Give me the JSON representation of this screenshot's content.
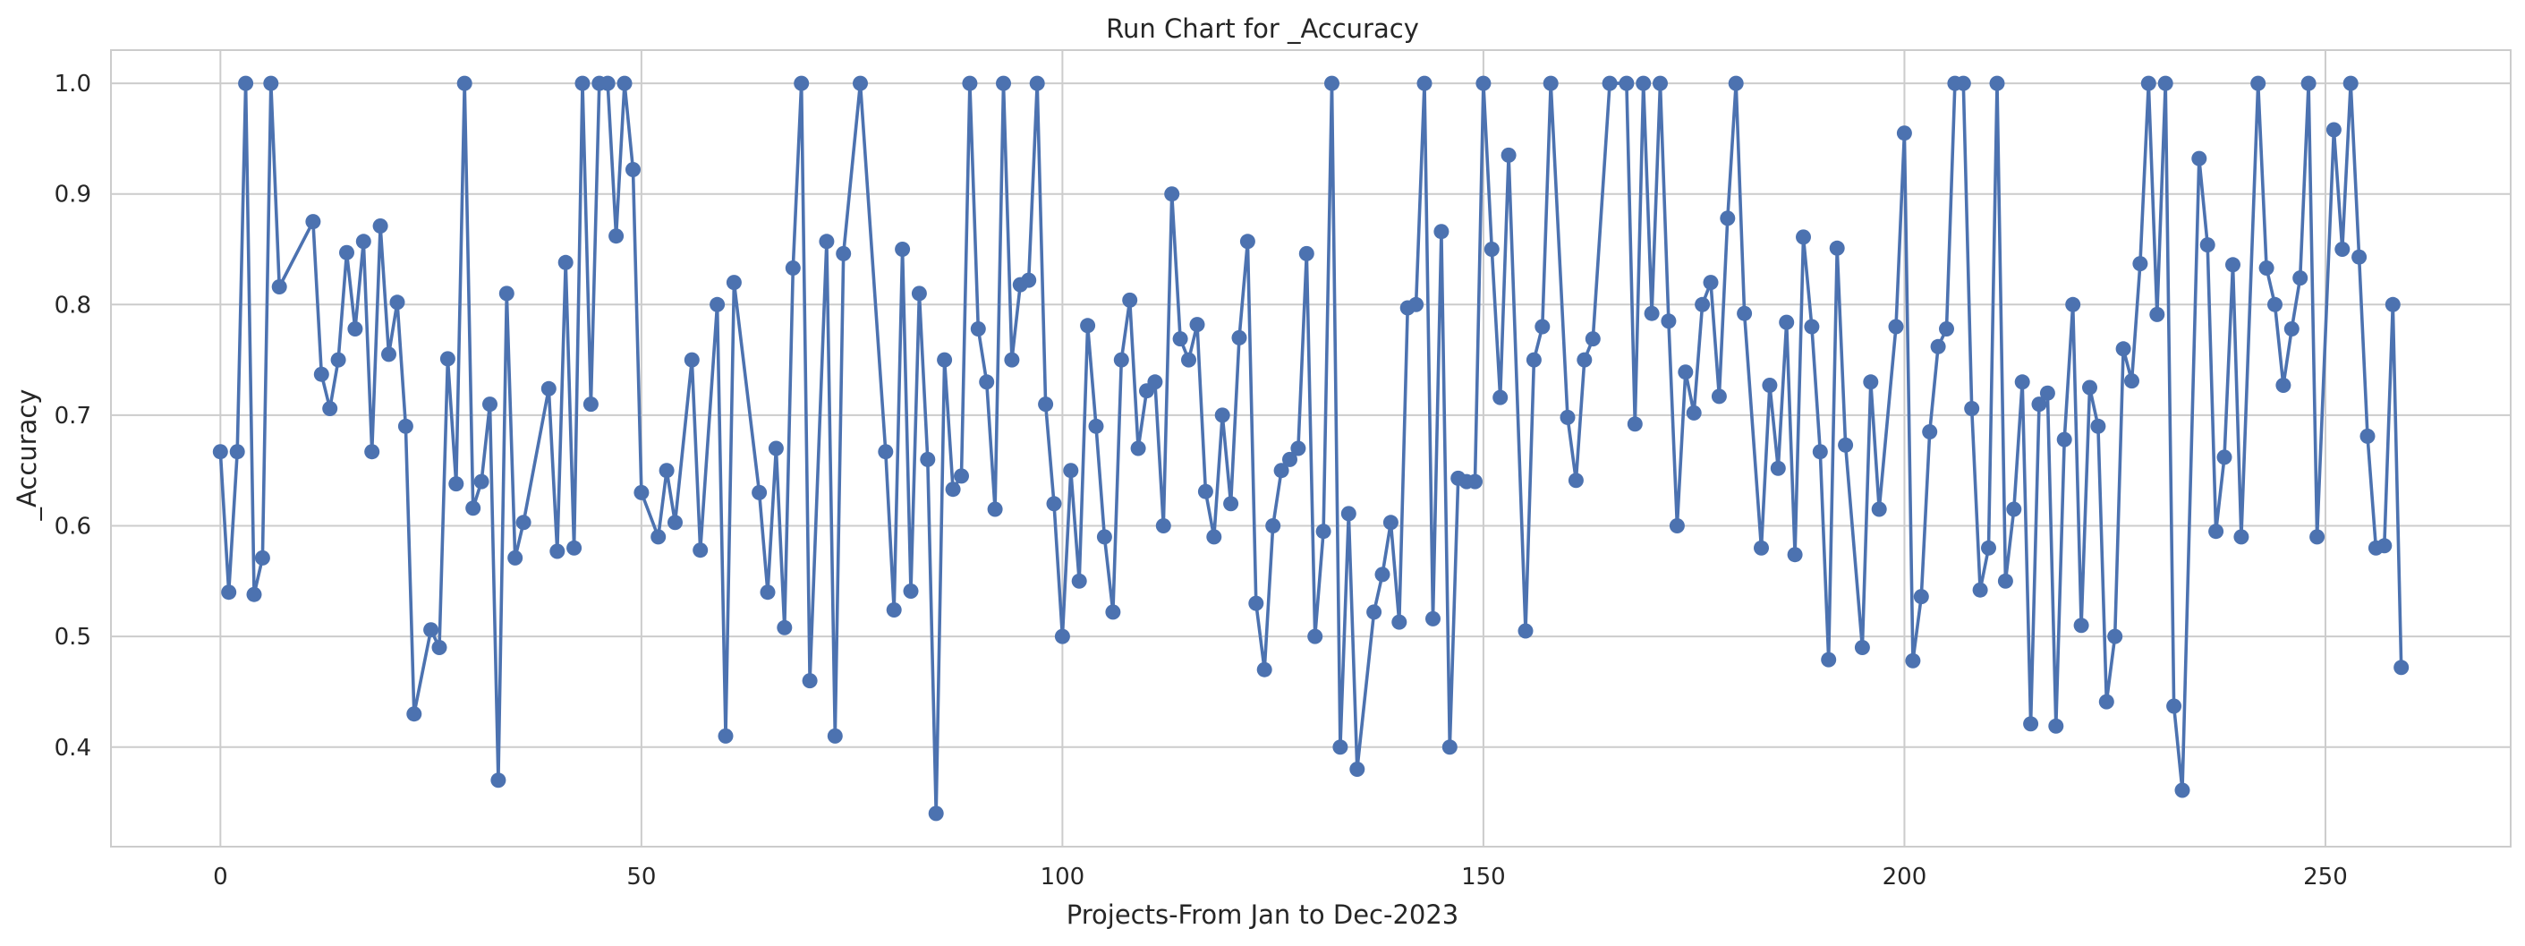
{
  "chart_data": {
    "type": "line",
    "title": "Run Chart for _Accuracy",
    "xlabel": "Projects-From Jan to Dec-2023",
    "ylabel": "_Accuracy",
    "xlim": [
      -13,
      272
    ],
    "ylim": [
      0.31,
      1.03
    ],
    "xticks": [
      0,
      50,
      100,
      150,
      200,
      250
    ],
    "yticks": [
      0.4,
      0.5,
      0.6,
      0.7,
      0.8,
      0.9,
      1.0
    ],
    "xtick_labels": [
      "0",
      "50",
      "100",
      "150",
      "200",
      "250"
    ],
    "ytick_labels": [
      "0.4",
      "0.5",
      "0.6",
      "0.7",
      "0.8",
      "0.9",
      "1.0"
    ],
    "grid": true,
    "legend": "none",
    "colors": {
      "line": "#4c72b0",
      "grid": "#cccccc",
      "spine": "#cccccc",
      "text": "#262626"
    },
    "marker": "circle",
    "series": [
      {
        "x": [
          0,
          1,
          2,
          3,
          4,
          5,
          6,
          7,
          11,
          12,
          13,
          14,
          15,
          16,
          17,
          18,
          19,
          20,
          21,
          22,
          23,
          25,
          26,
          27,
          28,
          29,
          30,
          31,
          32,
          33,
          34,
          35,
          36,
          39,
          40,
          41,
          42,
          43,
          44,
          45,
          46,
          47,
          48,
          49,
          50,
          52,
          53,
          54,
          56,
          57,
          59,
          60,
          61,
          64,
          65,
          66,
          67,
          68,
          69,
          70,
          72,
          73,
          74,
          76,
          79,
          80,
          81,
          82,
          83,
          84,
          85,
          86,
          87,
          88,
          89,
          90,
          91,
          92,
          93,
          94,
          95,
          96,
          97,
          98,
          99,
          100,
          101,
          102,
          103,
          104,
          105,
          106,
          107,
          108,
          109,
          110,
          111,
          112,
          113,
          114,
          115,
          116,
          117,
          118,
          119,
          120,
          121,
          122,
          123,
          124,
          125,
          126,
          127,
          128,
          129,
          130,
          131,
          132,
          133,
          134,
          135,
          137,
          138,
          139,
          140,
          141,
          142,
          143,
          144,
          145,
          146,
          147,
          148,
          149,
          150,
          151,
          152,
          153,
          155,
          156,
          157,
          158,
          160,
          161,
          162,
          163,
          165,
          167,
          168,
          169,
          170,
          171,
          172,
          173,
          174,
          175,
          176,
          177,
          178,
          179,
          180,
          181,
          183,
          184,
          185,
          186,
          187,
          188,
          189,
          190,
          191,
          192,
          193,
          195,
          196,
          197,
          199,
          200,
          201,
          202,
          203,
          204,
          205,
          206,
          207,
          208,
          209,
          210,
          211,
          212,
          213,
          214,
          215,
          216,
          217,
          218,
          219,
          220,
          221,
          222,
          223,
          224,
          225,
          226,
          227,
          228,
          229,
          230,
          231,
          232,
          233,
          235,
          236,
          237,
          238,
          239,
          240,
          242,
          243,
          244,
          245,
          246,
          247,
          248,
          249,
          251,
          252,
          253,
          254,
          255,
          256,
          257,
          258,
          259
        ],
        "values": [
          0.667,
          0.54,
          0.667,
          1.0,
          0.538,
          0.571,
          1.0,
          0.816,
          0.875,
          0.737,
          0.706,
          0.75,
          0.847,
          0.778,
          0.857,
          0.667,
          0.871,
          0.755,
          0.802,
          0.69,
          0.43,
          0.506,
          0.49,
          0.751,
          0.638,
          1.0,
          0.616,
          0.64,
          0.71,
          0.37,
          0.81,
          0.571,
          0.603,
          0.724,
          0.577,
          0.838,
          0.58,
          1.0,
          0.71,
          1.0,
          1.0,
          0.862,
          1.0,
          0.922,
          0.63,
          0.59,
          0.65,
          0.603,
          0.75,
          0.578,
          0.8,
          0.41,
          0.82,
          0.63,
          0.54,
          0.67,
          0.508,
          0.833,
          1.0,
          0.46,
          0.857,
          0.41,
          0.846,
          1.0,
          0.667,
          0.524,
          0.85,
          0.541,
          0.81,
          0.66,
          0.34,
          0.75,
          0.633,
          0.645,
          1.0,
          0.778,
          0.73,
          0.615,
          1.0,
          0.75,
          0.818,
          0.822,
          1.0,
          0.71,
          0.62,
          0.5,
          0.65,
          0.55,
          0.781,
          0.69,
          0.59,
          0.522,
          0.75,
          0.804,
          0.67,
          0.722,
          0.73,
          0.6,
          0.9,
          0.769,
          0.75,
          0.782,
          0.631,
          0.59,
          0.7,
          0.62,
          0.77,
          0.857,
          0.53,
          0.47,
          0.6,
          0.65,
          0.66,
          0.67,
          0.846,
          0.5,
          0.595,
          1.0,
          0.4,
          0.611,
          0.38,
          0.522,
          0.556,
          0.603,
          0.513,
          0.797,
          0.8,
          1.0,
          0.516,
          0.866,
          0.4,
          0.643,
          0.64,
          0.64,
          1.0,
          0.85,
          0.716,
          0.935,
          0.505,
          0.75,
          0.78,
          1.0,
          0.698,
          0.641,
          0.75,
          0.769,
          1.0,
          1.0,
          0.692,
          1.0,
          0.792,
          1.0,
          0.785,
          0.6,
          0.739,
          0.702,
          0.8,
          0.82,
          0.717,
          0.878,
          1.0,
          0.792,
          0.58,
          0.727,
          0.652,
          0.784,
          0.574,
          0.861,
          0.78,
          0.667,
          0.479,
          0.851,
          0.673,
          0.49,
          0.73,
          0.615,
          0.78,
          0.955,
          0.478,
          0.536,
          0.685,
          0.762,
          0.778,
          1.0,
          1.0,
          0.706,
          0.542,
          0.58,
          1.0,
          0.55,
          0.615,
          0.73,
          0.421,
          0.71,
          0.72,
          0.419,
          0.678,
          0.8,
          0.51,
          0.725,
          0.69,
          0.441,
          0.5,
          0.76,
          0.731,
          0.837,
          1.0,
          0.791,
          1.0,
          0.437,
          0.361,
          0.932,
          0.854,
          0.595,
          0.662,
          0.836,
          0.59,
          1.0,
          0.833,
          0.8,
          0.727,
          0.778,
          0.824,
          1.0,
          0.59,
          0.958,
          0.85,
          1.0,
          0.843,
          0.681,
          0.58,
          0.582,
          0.8,
          0.472
        ]
      }
    ]
  }
}
